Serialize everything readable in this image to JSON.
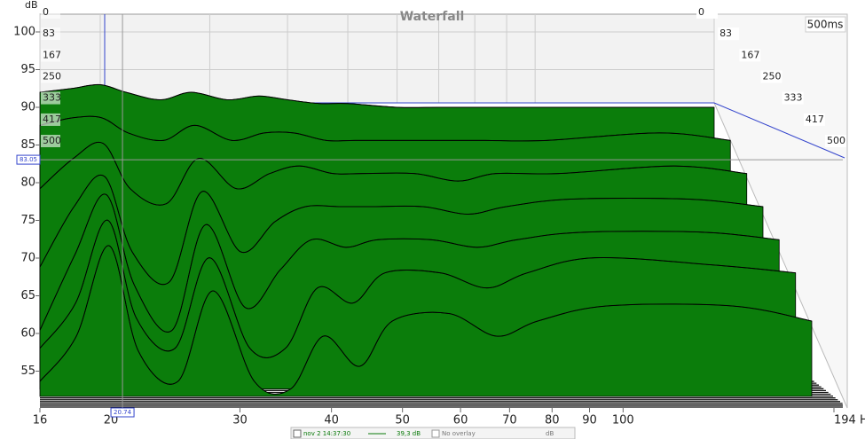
{
  "chart_data": {
    "type": "waterfall",
    "title": "Waterfall",
    "y_label": "dB",
    "time_box": "500ms",
    "x": [
      16,
      18,
      20,
      22,
      25,
      28,
      32,
      36,
      40,
      45,
      50,
      60,
      70,
      80,
      100,
      150,
      194
    ],
    "series": [
      {
        "name": "0",
        "color": "#0b7d0b",
        "values": [
          92,
          92.5,
          93,
          92,
          91,
          92,
          91,
          91.5,
          91,
          90.5,
          90.5,
          90,
          90,
          90,
          90,
          90,
          90
        ]
      },
      {
        "name": "83",
        "color": "#0b7d0b",
        "values": [
          88,
          89,
          89,
          87,
          86,
          88,
          86,
          87,
          87,
          86,
          86,
          86,
          86,
          86,
          86,
          87,
          86
        ]
      },
      {
        "name": "167",
        "color": "#0b7d0b",
        "values": [
          80,
          84,
          86,
          80,
          78,
          84,
          80,
          82,
          83,
          82,
          82,
          82,
          81,
          82,
          82,
          83,
          82
        ]
      },
      {
        "name": "250",
        "color": "#0b7d0b",
        "values": [
          70,
          78,
          82,
          72,
          68,
          80,
          72,
          76,
          78,
          78,
          78,
          78,
          77,
          78,
          79,
          79,
          78
        ]
      },
      {
        "name": "333",
        "color": "#0b7d0b",
        "values": [
          62,
          72,
          80,
          68,
          62,
          76,
          65,
          70,
          74,
          73,
          74,
          74,
          73,
          74,
          75,
          75,
          74
        ]
      },
      {
        "name": "417",
        "color": "#0b7d0b",
        "values": [
          60,
          66,
          77,
          64,
          60,
          72,
          60,
          60,
          68,
          66,
          70,
          70,
          68,
          70,
          72,
          71,
          70
        ]
      },
      {
        "name": "500",
        "color": "#0b7d0b",
        "values": [
          56,
          62,
          74,
          60,
          56,
          68,
          56,
          55,
          62,
          58,
          64,
          65,
          62,
          64,
          66,
          66,
          64
        ]
      }
    ],
    "times": [
      0,
      83,
      167,
      250,
      333,
      417,
      500
    ],
    "xlog": true,
    "xlim": [
      16,
      194
    ],
    "xticks": [
      16,
      20,
      30,
      40,
      50,
      60,
      70,
      80,
      90,
      100,
      {
        "value": 194,
        "label": "194 Hz"
      }
    ],
    "ylim": [
      50,
      102
    ],
    "yticks": [
      55,
      60,
      65,
      70,
      75,
      80,
      85,
      90,
      95,
      100
    ],
    "cursor": {
      "x": 20.74,
      "y": 83.05
    }
  },
  "legend_bar": {
    "items": [
      "nov 2 14:37:30",
      "39,3 dB",
      "No overlay",
      "dB"
    ]
  }
}
